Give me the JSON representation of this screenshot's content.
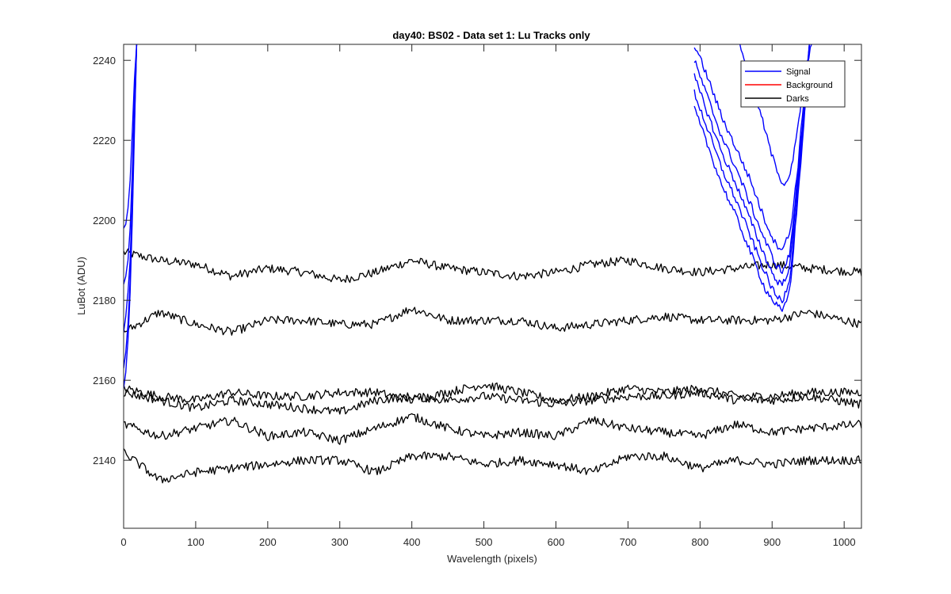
{
  "chart_data": {
    "type": "line",
    "title": "day40: BS02 - Data set 1: Lu Tracks only",
    "xlabel": "Wavelength (pixels)",
    "ylabel": "LuBot (ADU)",
    "xlim": [
      0,
      1024
    ],
    "ylim": [
      2123,
      2244
    ],
    "xticks": [
      0,
      100,
      200,
      300,
      400,
      500,
      600,
      700,
      800,
      900,
      1000
    ],
    "yticks": [
      2140,
      2160,
      2180,
      2200,
      2220,
      2240
    ],
    "grid": false,
    "legend": {
      "position": "top-right",
      "entries": [
        {
          "label": "Signal",
          "color": "#0000ff"
        },
        {
          "label": "Background",
          "color": "#ff0000"
        },
        {
          "label": "Darks",
          "color": "#000000"
        }
      ]
    },
    "series": [
      {
        "group": "Darks",
        "color": "#000000",
        "x": [
          0,
          50,
          100,
          150,
          200,
          250,
          300,
          350,
          400,
          450,
          500,
          550,
          600,
          650,
          700,
          750,
          800,
          850,
          900,
          950,
          1024
        ],
        "y": [
          2192,
          2190,
          2189,
          2186,
          2188,
          2187,
          2185,
          2187,
          2190,
          2188,
          2187,
          2186,
          2187,
          2189,
          2190,
          2188,
          2187,
          2188,
          2189,
          2188,
          2187
        ]
      },
      {
        "group": "Darks",
        "color": "#000000",
        "x": [
          0,
          50,
          100,
          150,
          200,
          250,
          300,
          350,
          400,
          450,
          500,
          550,
          600,
          650,
          700,
          750,
          800,
          850,
          900,
          950,
          1024
        ],
        "y": [
          2172,
          2177,
          2174,
          2172,
          2175,
          2175,
          2174,
          2174,
          2178,
          2175,
          2175,
          2175,
          2173,
          2174,
          2175,
          2176,
          2175,
          2175,
          2175,
          2177,
          2174
        ]
      },
      {
        "group": "Darks",
        "color": "#000000",
        "x": [
          0,
          50,
          100,
          150,
          200,
          250,
          300,
          350,
          400,
          450,
          500,
          550,
          600,
          650,
          700,
          750,
          800,
          850,
          900,
          950,
          1024
        ],
        "y": [
          2158,
          2156,
          2155,
          2157,
          2156,
          2156,
          2157,
          2157,
          2155,
          2157,
          2159,
          2157,
          2155,
          2156,
          2158,
          2157,
          2158,
          2156,
          2156,
          2157,
          2157
        ]
      },
      {
        "group": "Darks",
        "color": "#000000",
        "x": [
          0,
          50,
          100,
          150,
          200,
          250,
          300,
          350,
          400,
          450,
          500,
          550,
          600,
          650,
          700,
          750,
          800,
          850,
          900,
          950,
          1024
        ],
        "y": [
          2157,
          2155,
          2153,
          2155,
          2154,
          2153,
          2152,
          2155,
          2156,
          2155,
          2156,
          2155,
          2154,
          2155,
          2156,
          2156,
          2157,
          2155,
          2155,
          2156,
          2154
        ]
      },
      {
        "group": "Darks",
        "color": "#000000",
        "x": [
          0,
          50,
          100,
          150,
          200,
          250,
          300,
          350,
          400,
          450,
          500,
          550,
          600,
          650,
          700,
          750,
          800,
          850,
          900,
          950,
          1024
        ],
        "y": [
          2149,
          2146,
          2148,
          2150,
          2146,
          2147,
          2145,
          2148,
          2151,
          2148,
          2146,
          2147,
          2146,
          2150,
          2148,
          2147,
          2146,
          2149,
          2147,
          2148,
          2149
        ]
      },
      {
        "group": "Darks",
        "color": "#000000",
        "x": [
          0,
          50,
          100,
          150,
          200,
          250,
          300,
          350,
          400,
          450,
          500,
          550,
          600,
          650,
          700,
          750,
          800,
          850,
          900,
          950,
          1024
        ],
        "y": [
          2142,
          2135,
          2137,
          2138,
          2139,
          2140,
          2140,
          2137,
          2141,
          2141,
          2139,
          2140,
          2139,
          2137,
          2141,
          2141,
          2138,
          2140,
          2139,
          2140,
          2140
        ]
      },
      {
        "group": "Signal",
        "color": "#0000ff",
        "x": [
          0,
          3,
          6,
          9,
          12,
          15,
          18
        ],
        "y": [
          2198,
          2199,
          2203,
          2210,
          2222,
          2235,
          2244
        ]
      },
      {
        "group": "Signal",
        "color": "#0000ff",
        "x": [
          0,
          3,
          6,
          9,
          12,
          15,
          18
        ],
        "y": [
          2184,
          2186,
          2190,
          2198,
          2212,
          2230,
          2244
        ]
      },
      {
        "group": "Signal",
        "color": "#0000ff",
        "x": [
          0,
          3,
          6,
          9,
          12,
          15,
          18
        ],
        "y": [
          2172,
          2176,
          2182,
          2190,
          2205,
          2226,
          2244
        ]
      },
      {
        "group": "Signal",
        "color": "#0000ff",
        "x": [
          0,
          3,
          6,
          9,
          12,
          15,
          18
        ],
        "y": [
          2163,
          2167,
          2174,
          2185,
          2202,
          2224,
          2244
        ]
      },
      {
        "group": "Signal",
        "color": "#0000ff",
        "x": [
          0,
          3,
          6,
          9,
          12,
          15,
          18
        ],
        "y": [
          2158,
          2162,
          2170,
          2182,
          2200,
          2222,
          2244
        ]
      },
      {
        "group": "Signal",
        "color": "#0000ff",
        "x": [
          855,
          870,
          885,
          900,
          915,
          925,
          935,
          945,
          955
        ],
        "y": [
          2244,
          2236,
          2226,
          2216,
          2209,
          2211,
          2222,
          2236,
          2244
        ]
      },
      {
        "group": "Signal",
        "color": "#0000ff",
        "x": [
          792,
          810,
          830,
          850,
          870,
          890,
          905,
          915,
          925,
          935,
          945,
          952
        ],
        "y": [
          2244,
          2236,
          2226,
          2218,
          2210,
          2200,
          2194,
          2193,
          2197,
          2212,
          2232,
          2244
        ]
      },
      {
        "group": "Signal",
        "color": "#0000ff",
        "x": [
          792,
          810,
          830,
          850,
          870,
          890,
          905,
          915,
          925,
          935,
          945,
          952
        ],
        "y": [
          2240,
          2231,
          2221,
          2213,
          2204,
          2195,
          2189,
          2187,
          2192,
          2210,
          2230,
          2244
        ]
      },
      {
        "group": "Signal",
        "color": "#0000ff",
        "x": [
          792,
          810,
          830,
          850,
          870,
          890,
          905,
          915,
          925,
          935,
          945,
          952
        ],
        "y": [
          2236,
          2227,
          2217,
          2209,
          2200,
          2191,
          2185,
          2184,
          2189,
          2208,
          2228,
          2244
        ]
      },
      {
        "group": "Signal",
        "color": "#0000ff",
        "x": [
          792,
          810,
          830,
          850,
          870,
          890,
          905,
          915,
          925,
          935,
          945,
          952
        ],
        "y": [
          2232,
          2223,
          2213,
          2205,
          2196,
          2187,
          2181,
          2180,
          2186,
          2206,
          2227,
          2244
        ]
      },
      {
        "group": "Signal",
        "color": "#0000ff",
        "x": [
          792,
          810,
          830,
          850,
          870,
          890,
          905,
          915,
          925,
          935,
          945,
          952
        ],
        "y": [
          2228,
          2219,
          2209,
          2201,
          2192,
          2183,
          2179,
          2177,
          2183,
          2204,
          2226,
          2244
        ]
      }
    ]
  }
}
